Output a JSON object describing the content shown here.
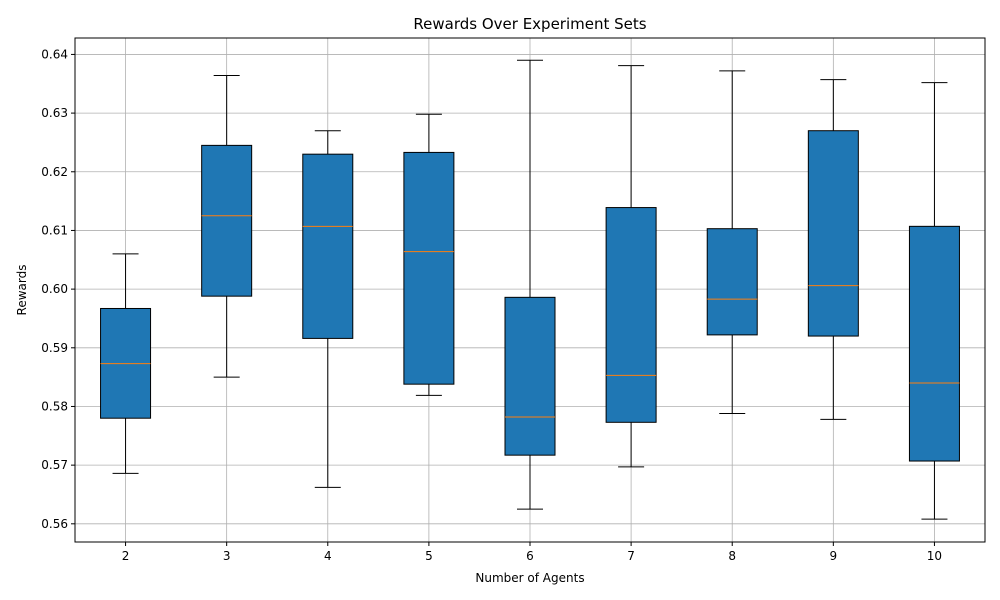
{
  "chart_data": {
    "type": "box",
    "title": "Rewards Over Experiment Sets",
    "xlabel": "Number of Agents",
    "ylabel": "Rewards",
    "categories": [
      "2",
      "3",
      "4",
      "5",
      "6",
      "7",
      "8",
      "9",
      "10"
    ],
    "boxes": [
      {
        "category": "2",
        "whisker_low": 0.5686,
        "q1": 0.578,
        "median": 0.5873,
        "q3": 0.5967,
        "whisker_high": 0.606
      },
      {
        "category": "3",
        "whisker_low": 0.585,
        "q1": 0.5988,
        "median": 0.6125,
        "q3": 0.6245,
        "whisker_high": 0.6364
      },
      {
        "category": "4",
        "whisker_low": 0.5662,
        "q1": 0.5916,
        "median": 0.6107,
        "q3": 0.623,
        "whisker_high": 0.627
      },
      {
        "category": "5",
        "whisker_low": 0.5819,
        "q1": 0.5838,
        "median": 0.6064,
        "q3": 0.6233,
        "whisker_high": 0.6298
      },
      {
        "category": "6",
        "whisker_low": 0.5625,
        "q1": 0.5717,
        "median": 0.5782,
        "q3": 0.5986,
        "whisker_high": 0.639
      },
      {
        "category": "7",
        "whisker_low": 0.5697,
        "q1": 0.5773,
        "median": 0.5853,
        "q3": 0.6139,
        "whisker_high": 0.6381
      },
      {
        "category": "8",
        "whisker_low": 0.5788,
        "q1": 0.5922,
        "median": 0.5983,
        "q3": 0.6103,
        "whisker_high": 0.6372
      },
      {
        "category": "9",
        "whisker_low": 0.5778,
        "q1": 0.592,
        "median": 0.6006,
        "q3": 0.627,
        "whisker_high": 0.6357
      },
      {
        "category": "10",
        "whisker_low": 0.5608,
        "q1": 0.5707,
        "median": 0.584,
        "q3": 0.6107,
        "whisker_high": 0.6352
      }
    ],
    "yticks": [
      0.56,
      0.57,
      0.58,
      0.59,
      0.6,
      0.61,
      0.62,
      0.63,
      0.64
    ],
    "ytick_labels": [
      "0.56",
      "0.57",
      "0.58",
      "0.59",
      "0.60",
      "0.61",
      "0.62",
      "0.63",
      "0.64"
    ],
    "ylim": [
      0.5569,
      0.6428
    ],
    "grid": true,
    "colors": {
      "box_fill": "#1f77b4",
      "median": "#ff7f0e",
      "edge": "#000000",
      "grid": "#b0b0b0"
    }
  }
}
